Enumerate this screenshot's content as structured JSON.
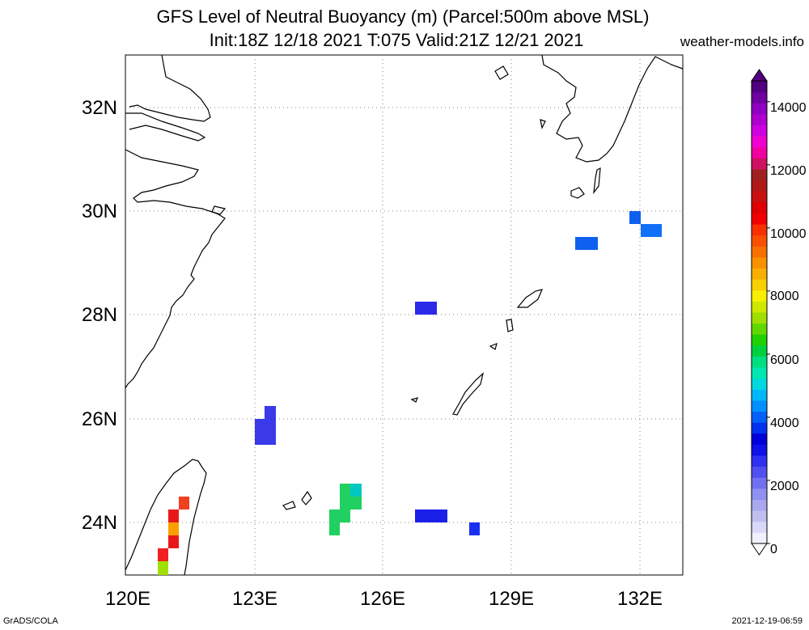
{
  "header": {
    "title_line1": "GFS Level of Neutral Buoyancy (m) (Parcel:500m above MSL)",
    "title_line2": "Init:18Z 12/18 2021 T:075 Valid:21Z 12/21 2021",
    "site": "weather-models.info"
  },
  "map": {
    "lon_labels": [
      "120E",
      "123E",
      "126E",
      "129E",
      "132E"
    ],
    "lat_labels": [
      "24N",
      "26N",
      "28N",
      "30N",
      "32N"
    ],
    "lon_range": [
      120,
      133
    ],
    "lat_range": [
      23,
      33
    ]
  },
  "colorbar": {
    "labels": [
      "0",
      "2000",
      "4000",
      "6000",
      "8000",
      "10000",
      "12000",
      "14000"
    ],
    "colors": [
      "#f0f0ff",
      "#d8d8f8",
      "#c0c0f0",
      "#a8a8f0",
      "#9090f0",
      "#7070f0",
      "#5050f0",
      "#3030f0",
      "#1010e8",
      "#0000d8",
      "#0030f0",
      "#0060f8",
      "#0090ff",
      "#00b8f8",
      "#00d8e0",
      "#00e8b0",
      "#00e080",
      "#00d040",
      "#20d000",
      "#60d800",
      "#a0e000",
      "#d0e800",
      "#f8f000",
      "#f8d000",
      "#f8b000",
      "#f89000",
      "#f87000",
      "#f85000",
      "#f83000",
      "#f00000",
      "#e00000",
      "#c81010",
      "#b01818",
      "#a02020",
      "#d01060",
      "#f000a0",
      "#f000d0",
      "#d000e0",
      "#b000d0",
      "#9000c0",
      "#7000a0",
      "#500080"
    ]
  },
  "footer": {
    "left": "GrADS/COLA",
    "right": "2021-12-19-06:59"
  }
}
